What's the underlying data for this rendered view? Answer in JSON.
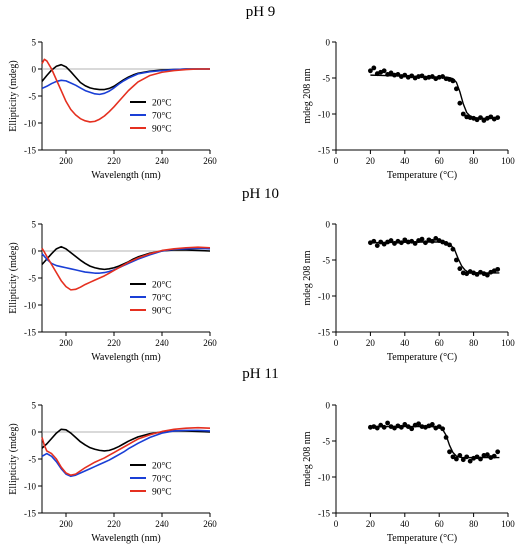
{
  "panels": [
    {
      "title": "pH 9"
    },
    {
      "title": "pH 10"
    },
    {
      "title": "pH 11"
    }
  ],
  "chart_data": [
    {
      "type": "line",
      "panel": "pH 9",
      "xlabel": "Wavelength (nm)",
      "ylabel": "Ellipticity (mdeg)",
      "xlim": [
        190,
        260
      ],
      "ylim": [
        -15,
        5
      ],
      "xticks": [
        200,
        220,
        240,
        260
      ],
      "yticks": [
        5,
        0,
        -5,
        -10,
        -15
      ],
      "reference_line": 0,
      "legend": "bottom-right",
      "series": [
        {
          "name": "20°C",
          "color": "#000000",
          "x": [
            190,
            192,
            194,
            196,
            198,
            200,
            202,
            204,
            206,
            208,
            210,
            212,
            214,
            216,
            218,
            220,
            222,
            224,
            226,
            228,
            230,
            235,
            240,
            245,
            250,
            255,
            260
          ],
          "y": [
            -2.3,
            -1.2,
            -0.2,
            0.5,
            0.8,
            0.4,
            -0.5,
            -1.5,
            -2.5,
            -3.1,
            -3.5,
            -3.7,
            -3.8,
            -3.8,
            -3.6,
            -3.2,
            -2.6,
            -2.0,
            -1.5,
            -1.1,
            -0.8,
            -0.4,
            -0.2,
            -0.1,
            0,
            0,
            0
          ]
        },
        {
          "name": "70°C",
          "color": "#1a3fd6",
          "x": [
            190,
            192,
            194,
            196,
            198,
            200,
            202,
            204,
            206,
            208,
            210,
            212,
            214,
            216,
            218,
            220,
            222,
            224,
            226,
            228,
            230,
            235,
            240,
            245,
            250,
            255,
            260
          ],
          "y": [
            -3.6,
            -3.2,
            -2.7,
            -2.3,
            -2.1,
            -2.2,
            -2.6,
            -3.0,
            -3.5,
            -4.0,
            -4.3,
            -4.6,
            -4.7,
            -4.5,
            -4.1,
            -3.5,
            -2.8,
            -2.2,
            -1.7,
            -1.3,
            -0.9,
            -0.5,
            -0.3,
            -0.1,
            0,
            0,
            0
          ]
        },
        {
          "name": "90°C",
          "color": "#e53020",
          "x": [
            190,
            191,
            192,
            194,
            196,
            198,
            200,
            202,
            204,
            206,
            208,
            210,
            212,
            214,
            216,
            218,
            220,
            222,
            224,
            226,
            228,
            230,
            235,
            240,
            245,
            250,
            255,
            260
          ],
          "y": [
            1.0,
            1.8,
            1.5,
            0.0,
            -2.0,
            -4.0,
            -6.0,
            -7.5,
            -8.5,
            -9.2,
            -9.6,
            -9.8,
            -9.7,
            -9.3,
            -8.7,
            -7.9,
            -7.0,
            -6.0,
            -5.0,
            -4.0,
            -3.2,
            -2.4,
            -1.2,
            -0.6,
            -0.3,
            -0.1,
            0,
            0
          ]
        }
      ]
    },
    {
      "type": "scatter",
      "panel": "pH 9",
      "xlabel": "Temperature (°C)",
      "ylabel": "mdeg 208 nm",
      "xlim": [
        0,
        100
      ],
      "ylim": [
        -15,
        0
      ],
      "xticks": [
        0,
        20,
        40,
        60,
        80,
        100
      ],
      "yticks": [
        0,
        -5,
        -10,
        -15
      ],
      "points": {
        "x": [
          20,
          22,
          24,
          26,
          28,
          30,
          32,
          34,
          36,
          38,
          40,
          42,
          44,
          46,
          48,
          50,
          52,
          54,
          56,
          58,
          60,
          62,
          64,
          66,
          68,
          70,
          72,
          74,
          76,
          78,
          80,
          82,
          84,
          86,
          88,
          90,
          92,
          94
        ],
        "y": [
          -4.0,
          -3.6,
          -4.4,
          -4.2,
          -4.0,
          -4.5,
          -4.3,
          -4.6,
          -4.5,
          -4.8,
          -4.6,
          -4.9,
          -4.7,
          -5.0,
          -4.8,
          -4.7,
          -5.0,
          -4.9,
          -4.8,
          -5.1,
          -4.9,
          -4.8,
          -5.1,
          -5.2,
          -5.4,
          -6.5,
          -8.5,
          -10.0,
          -10.4,
          -10.5,
          -10.6,
          -10.8,
          -10.5,
          -10.9,
          -10.6,
          -10.4,
          -10.7,
          -10.5
        ]
      },
      "fit": {
        "x": [
          20,
          50,
          65,
          68,
          70,
          72,
          74,
          76,
          78,
          80,
          85,
          95
        ],
        "y": [
          -4.6,
          -4.8,
          -4.9,
          -5.1,
          -5.6,
          -6.9,
          -8.6,
          -9.8,
          -10.3,
          -10.5,
          -10.6,
          -10.6
        ]
      }
    },
    {
      "type": "line",
      "panel": "pH 10",
      "xlabel": "Wavelength (nm)",
      "ylabel": "Ellipticity (mdeg)",
      "xlim": [
        190,
        260
      ],
      "ylim": [
        -15,
        5
      ],
      "xticks": [
        200,
        220,
        240,
        260
      ],
      "yticks": [
        5,
        0,
        -5,
        -10,
        -15
      ],
      "reference_line": 0,
      "legend": "bottom-right",
      "series": [
        {
          "name": "20°C",
          "color": "#000000",
          "x": [
            190,
            192,
            194,
            196,
            198,
            200,
            202,
            204,
            206,
            208,
            210,
            212,
            214,
            216,
            218,
            220,
            222,
            224,
            226,
            228,
            230,
            235,
            240,
            245,
            250,
            255,
            260
          ],
          "y": [
            -2.5,
            -1.5,
            -0.5,
            0.4,
            0.8,
            0.4,
            -0.3,
            -1.0,
            -1.7,
            -2.3,
            -2.8,
            -3.1,
            -3.3,
            -3.4,
            -3.3,
            -3.1,
            -2.8,
            -2.4,
            -2.0,
            -1.5,
            -1.1,
            -0.4,
            0,
            0.2,
            0.2,
            0.1,
            0
          ]
        },
        {
          "name": "70°C",
          "color": "#1a3fd6",
          "x": [
            190,
            192,
            194,
            196,
            198,
            200,
            202,
            204,
            206,
            208,
            210,
            212,
            214,
            216,
            218,
            220,
            222,
            224,
            226,
            228,
            230,
            235,
            240,
            245,
            250,
            255,
            260
          ],
          "y": [
            -0.5,
            -1.5,
            -2.3,
            -2.7,
            -2.9,
            -3.1,
            -3.3,
            -3.5,
            -3.7,
            -3.9,
            -4.0,
            -4.1,
            -4.1,
            -4.0,
            -3.8,
            -3.5,
            -3.1,
            -2.7,
            -2.3,
            -1.9,
            -1.5,
            -0.7,
            0,
            0.3,
            0.4,
            0.5,
            0.4
          ]
        },
        {
          "name": "90°C",
          "color": "#e53020",
          "x": [
            190,
            191,
            192,
            194,
            196,
            198,
            200,
            202,
            204,
            206,
            208,
            210,
            212,
            214,
            216,
            218,
            220,
            222,
            224,
            226,
            228,
            230,
            235,
            240,
            245,
            250,
            255,
            260
          ],
          "y": [
            0.5,
            -0.2,
            -1.0,
            -2.5,
            -4.0,
            -5.5,
            -6.6,
            -7.2,
            -7.1,
            -6.7,
            -6.2,
            -5.8,
            -5.4,
            -5.0,
            -4.6,
            -4.1,
            -3.6,
            -3.1,
            -2.6,
            -2.1,
            -1.7,
            -1.3,
            -0.5,
            0.1,
            0.4,
            0.6,
            0.7,
            0.6
          ]
        }
      ]
    },
    {
      "type": "scatter",
      "panel": "pH 10",
      "xlabel": "Temperature (°C)",
      "ylabel": "mdeg 208 nm",
      "xlim": [
        0,
        100
      ],
      "ylim": [
        -15,
        0
      ],
      "xticks": [
        0,
        20,
        40,
        60,
        80,
        100
      ],
      "yticks": [
        0,
        -5,
        -10,
        -15
      ],
      "points": {
        "x": [
          20,
          22,
          24,
          26,
          28,
          30,
          32,
          34,
          36,
          38,
          40,
          42,
          44,
          46,
          48,
          50,
          52,
          54,
          56,
          58,
          60,
          62,
          64,
          66,
          68,
          70,
          72,
          74,
          76,
          78,
          80,
          82,
          84,
          86,
          88,
          90,
          92,
          94
        ],
        "y": [
          -2.6,
          -2.4,
          -3.0,
          -2.5,
          -2.8,
          -2.5,
          -2.3,
          -2.7,
          -2.4,
          -2.6,
          -2.2,
          -2.5,
          -2.4,
          -2.7,
          -2.3,
          -2.1,
          -2.6,
          -2.2,
          -2.4,
          -2.0,
          -2.3,
          -2.5,
          -2.7,
          -2.9,
          -3.5,
          -5.0,
          -6.2,
          -6.8,
          -6.9,
          -6.6,
          -6.8,
          -7.0,
          -6.7,
          -6.9,
          -7.1,
          -6.7,
          -6.5,
          -6.3
        ]
      },
      "fit": {
        "x": [
          20,
          50,
          62,
          65,
          67,
          69,
          71,
          73,
          75,
          77,
          80,
          95
        ],
        "y": [
          -2.6,
          -2.5,
          -2.5,
          -2.7,
          -3.0,
          -3.6,
          -4.8,
          -5.8,
          -6.4,
          -6.7,
          -6.8,
          -6.8
        ]
      }
    },
    {
      "type": "line",
      "panel": "pH 11",
      "xlabel": "Wavelength (nm)",
      "ylabel": "Ellipticity (mdeg)",
      "xlim": [
        190,
        260
      ],
      "ylim": [
        -15,
        5
      ],
      "xticks": [
        200,
        220,
        240,
        260
      ],
      "yticks": [
        5,
        0,
        -5,
        -10,
        -15
      ],
      "reference_line": 0,
      "legend": "bottom-right",
      "series": [
        {
          "name": "20°C",
          "color": "#000000",
          "x": [
            190,
            192,
            194,
            196,
            198,
            200,
            202,
            204,
            206,
            208,
            210,
            212,
            214,
            216,
            218,
            220,
            222,
            224,
            226,
            228,
            230,
            235,
            240,
            245,
            250,
            255,
            260
          ],
          "y": [
            -3.0,
            -2.2,
            -1.2,
            -0.2,
            0.5,
            0.4,
            -0.2,
            -1.0,
            -1.8,
            -2.4,
            -2.9,
            -3.2,
            -3.4,
            -3.5,
            -3.4,
            -3.1,
            -2.7,
            -2.2,
            -1.7,
            -1.3,
            -0.9,
            -0.3,
            0,
            0.2,
            0.2,
            0.1,
            0
          ]
        },
        {
          "name": "70°C",
          "color": "#1a3fd6",
          "x": [
            190,
            192,
            194,
            196,
            198,
            200,
            202,
            204,
            206,
            208,
            210,
            212,
            214,
            216,
            218,
            220,
            222,
            224,
            226,
            228,
            230,
            235,
            240,
            245,
            250,
            255,
            260
          ],
          "y": [
            -4.5,
            -4.0,
            -4.5,
            -5.5,
            -6.8,
            -7.8,
            -8.2,
            -8.0,
            -7.6,
            -7.2,
            -6.8,
            -6.4,
            -6.0,
            -5.6,
            -5.2,
            -4.7,
            -4.2,
            -3.7,
            -3.1,
            -2.6,
            -2.1,
            -1.0,
            -0.2,
            0.2,
            0.3,
            0.3,
            0.2
          ]
        },
        {
          "name": "90°C",
          "color": "#e53020",
          "x": [
            190,
            191,
            192,
            194,
            196,
            198,
            200,
            202,
            204,
            206,
            208,
            210,
            212,
            214,
            216,
            218,
            220,
            222,
            224,
            226,
            228,
            230,
            235,
            240,
            245,
            250,
            255,
            260
          ],
          "y": [
            -1.0,
            -2.5,
            -3.5,
            -4.0,
            -5.0,
            -6.5,
            -7.6,
            -8.0,
            -7.8,
            -7.2,
            -6.6,
            -6.1,
            -5.6,
            -5.2,
            -4.8,
            -4.3,
            -3.8,
            -3.3,
            -2.8,
            -2.3,
            -1.8,
            -1.3,
            -0.5,
            0.1,
            0.5,
            0.7,
            0.8,
            0.7
          ]
        }
      ]
    },
    {
      "type": "scatter",
      "panel": "pH 11",
      "xlabel": "Temperature (°C)",
      "ylabel": "mdeg 208 nm",
      "xlim": [
        0,
        100
      ],
      "ylim": [
        -15,
        0
      ],
      "xticks": [
        0,
        20,
        40,
        60,
        80,
        100
      ],
      "yticks": [
        0,
        -5,
        -10,
        -15
      ],
      "points": {
        "x": [
          20,
          22,
          24,
          26,
          28,
          30,
          32,
          34,
          36,
          38,
          40,
          42,
          44,
          46,
          48,
          50,
          52,
          54,
          56,
          58,
          60,
          62,
          64,
          66,
          68,
          70,
          72,
          74,
          76,
          78,
          80,
          82,
          84,
          86,
          88,
          90,
          92,
          94
        ],
        "y": [
          -3.1,
          -3.0,
          -3.2,
          -2.8,
          -3.1,
          -2.5,
          -3.0,
          -3.2,
          -2.9,
          -3.1,
          -2.7,
          -3.0,
          -3.3,
          -2.8,
          -2.6,
          -3.0,
          -3.1,
          -2.9,
          -2.7,
          -3.2,
          -3.0,
          -3.3,
          -4.5,
          -6.5,
          -7.2,
          -7.5,
          -7.0,
          -7.6,
          -7.2,
          -7.8,
          -7.4,
          -7.2,
          -7.5,
          -7.0,
          -6.9,
          -7.3,
          -7.1,
          -6.5
        ]
      },
      "fit": {
        "x": [
          20,
          55,
          60,
          62,
          64,
          66,
          68,
          70,
          73,
          80,
          95
        ],
        "y": [
          -3.0,
          -3.0,
          -3.1,
          -3.4,
          -4.2,
          -5.6,
          -6.6,
          -7.1,
          -7.3,
          -7.3,
          -7.3
        ]
      }
    }
  ]
}
